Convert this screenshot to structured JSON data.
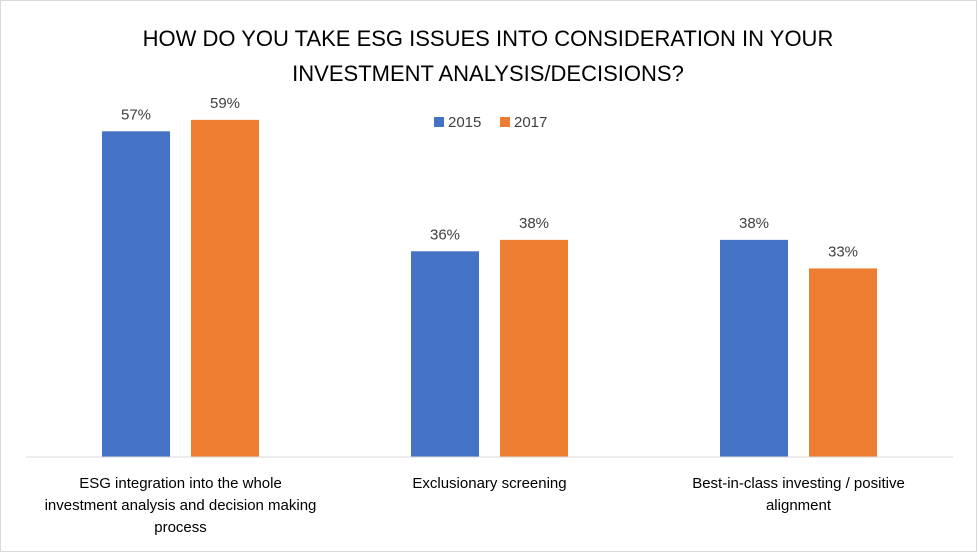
{
  "chart_data": {
    "type": "bar",
    "title_lines": [
      "HOW DO YOU TAKE ESG ISSUES INTO CONSIDERATION IN YOUR",
      "INVESTMENT ANALYSIS/DECISIONS?"
    ],
    "categories": [
      [
        "ESG integration into the whole",
        "investment analysis and decision making",
        "process"
      ],
      [
        "Exclusionary screening"
      ],
      [
        "Best-in-class investing / positive",
        "alignment"
      ]
    ],
    "series": [
      {
        "name": "2015",
        "color": "#4472C4",
        "values": [
          57,
          36,
          38
        ],
        "labels": [
          "57%",
          "36%",
          "38%"
        ]
      },
      {
        "name": "2017",
        "color": "#ED7D31",
        "values": [
          59,
          38,
          33
        ],
        "labels": [
          "59%",
          "38%",
          "33%"
        ]
      }
    ],
    "ylim": [
      0,
      70
    ],
    "grid": false,
    "legend_position": "top"
  }
}
